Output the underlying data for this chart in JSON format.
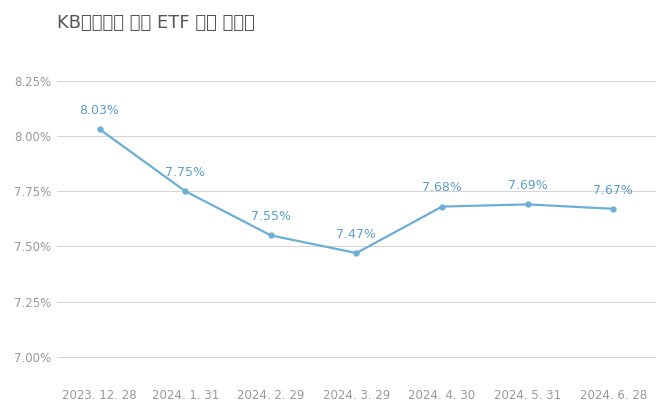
{
  "title": "KB자산운용 월별 ETF 시장 점유율",
  "x_labels": [
    "2023. 12. 28",
    "2024. 1. 31",
    "2024. 2. 29",
    "2024. 3. 29",
    "2024. 4. 30",
    "2024. 5. 31",
    "2024. 6. 28"
  ],
  "y_values": [
    8.03,
    7.75,
    7.55,
    7.47,
    7.68,
    7.69,
    7.67
  ],
  "y_labels": [
    "8.03%",
    "7.75%",
    "7.55%",
    "7.47%",
    "7.68%",
    "7.69%",
    "7.67%"
  ],
  "line_color": "#6baed6",
  "marker_color": "#6baed6",
  "label_color": "#5a9fc9",
  "title_color": "#555555",
  "bg_color": "#ffffff",
  "grid_color": "#cccccc",
  "ytick_labels": [
    "7.00%",
    "7.25%",
    "7.50%",
    "7.75%",
    "8.00%",
    "8.25%"
  ],
  "ytick_values": [
    7.0,
    7.25,
    7.5,
    7.75,
    8.0,
    8.25
  ],
  "ylim": [
    6.88,
    8.4
  ],
  "title_fontsize": 13,
  "label_fontsize": 9,
  "tick_fontsize": 8.5,
  "tick_color": "#999999"
}
